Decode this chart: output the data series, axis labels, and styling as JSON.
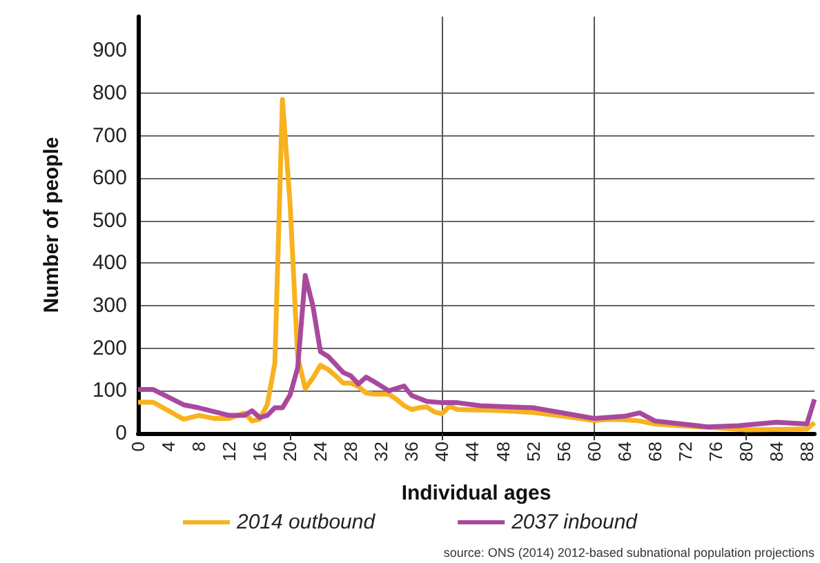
{
  "chart_data": {
    "type": "line",
    "xlabel": "Individual ages",
    "ylabel": "Number of people",
    "annotations": [
      "source: ONS (2014) 2012-based subnational population projections"
    ],
    "xlim": [
      0,
      89
    ],
    "xticks": [
      0,
      4,
      8,
      12,
      16,
      20,
      24,
      28,
      32,
      36,
      40,
      44,
      48,
      52,
      56,
      60,
      64,
      68,
      72,
      76,
      80,
      84,
      88
    ],
    "ylim": [
      0,
      980
    ],
    "yticks": [
      0,
      100,
      200,
      300,
      400,
      500,
      600,
      700,
      800,
      900
    ],
    "grid": true,
    "legend": "bottom",
    "marker": "none",
    "line_style": "solid",
    "series": [
      {
        "name": "2014 outbound",
        "color": "#f7b21e",
        "x": [
          0,
          2,
          6,
          8,
          10,
          12,
          14,
          15,
          16,
          17,
          18,
          19,
          20,
          21,
          22,
          23,
          24,
          25,
          26,
          27,
          28,
          29,
          30,
          31,
          33,
          34,
          35,
          36,
          37,
          38,
          39,
          40,
          41,
          42,
          44,
          48,
          52,
          56,
          60,
          62,
          64,
          66,
          68,
          72,
          76,
          80,
          84,
          88,
          89
        ],
        "values": [
          73,
          73,
          33,
          42,
          35,
          35,
          48,
          29,
          33,
          67,
          165,
          785,
          540,
          180,
          105,
          130,
          160,
          150,
          135,
          118,
          118,
          110,
          95,
          92,
          92,
          80,
          65,
          56,
          60,
          62,
          50,
          46,
          64,
          56,
          55,
          53,
          49,
          40,
          30,
          33,
          32,
          29,
          22,
          17,
          13,
          8,
          9,
          10,
          25
        ]
      },
      {
        "name": "2037 inbound",
        "color": "#a8499e",
        "x": [
          0,
          2,
          6,
          8,
          12,
          14,
          15,
          16,
          17,
          18,
          19,
          20,
          21,
          22,
          23,
          24,
          25,
          27,
          28,
          29,
          30,
          31,
          33,
          35,
          36,
          38,
          40,
          42,
          45,
          52,
          60,
          64,
          66,
          68,
          75,
          79,
          84,
          88,
          89
        ],
        "values": [
          103,
          103,
          67,
          60,
          42,
          42,
          53,
          37,
          42,
          60,
          60,
          90,
          154,
          371,
          300,
          192,
          181,
          143,
          135,
          116,
          132,
          122,
          100,
          111,
          89,
          75,
          72,
          72,
          65,
          60,
          35,
          40,
          48,
          29,
          15,
          18,
          26,
          22,
          80
        ]
      }
    ]
  }
}
